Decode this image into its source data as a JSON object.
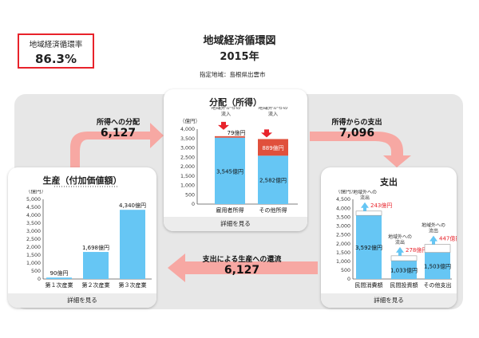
{
  "rate": {
    "label": "地域経済循環率",
    "value": "86.3%"
  },
  "header": {
    "title": "地域経済循環図",
    "year": "2015年",
    "region": "指定地域：島根県出雲市"
  },
  "distribution": {
    "title": "分配（所得）",
    "footer": "詳細を見る",
    "inflow_label_1": "地域外からの",
    "inflow_label_2": "流入",
    "inflow_label_3": "地域外からの",
    "inflow_label_4": "流入",
    "chart_data": {
      "type": "bar",
      "unit": "（億円）",
      "categories": [
        "雇用者所得",
        "その他所得"
      ],
      "ylim": [
        0,
        4000
      ],
      "ticks": [
        "0",
        "500",
        "1,000",
        "1,500",
        "2,000",
        "2,500",
        "3,000",
        "3,500",
        "4,000"
      ],
      "series": [
        {
          "values": [
            3545,
            2582
          ],
          "labels": [
            "3,545億円",
            "2,582億円"
          ],
          "color": "#66c6f4"
        },
        {
          "values": [
            79,
            889
          ],
          "labels": [
            "79億円",
            "889億円"
          ],
          "color": "#e0503c"
        }
      ]
    }
  },
  "production": {
    "title": "生産（付加価値額）",
    "footer": "詳細を見る",
    "chart_data": {
      "type": "bar",
      "unit": "（億円）",
      "categories": [
        "第１次産業",
        "第２次産業",
        "第３次産業"
      ],
      "ylim": [
        0,
        5000
      ],
      "ticks": [
        "0",
        "500",
        "1,000",
        "1,500",
        "2,000",
        "2,500",
        "3,000",
        "3,500",
        "4,000",
        "4,500",
        "5,000"
      ],
      "values": [
        90,
        1698,
        4340
      ],
      "labels": [
        "90億円",
        "1,698億円",
        "4,340億円"
      ],
      "color": "#66c6f4"
    }
  },
  "spending": {
    "title": "支出",
    "footer": "詳細を見る",
    "outflow_labels": [
      {
        "l1": "地域外への",
        "l2": "流出"
      },
      {
        "l1": "地域外への",
        "l2": "流出"
      },
      {
        "l1": "地域外への",
        "l2": "流出"
      }
    ],
    "chart_data": {
      "type": "bar",
      "unit": "（億円）",
      "categories": [
        "民間消費額",
        "民間投資額",
        "その他支出"
      ],
      "ylim": [
        0,
        4500
      ],
      "ticks": [
        "0",
        "500",
        "1,000",
        "1,500",
        "2,000",
        "2,500",
        "3,000",
        "3,500",
        "4,000",
        "4,500"
      ],
      "values": [
        3592,
        1033,
        1503
      ],
      "labels": [
        "3,592億円",
        "1,033億円",
        "1,503億円"
      ],
      "outflow_values": [
        243,
        278,
        447
      ],
      "outflow_labels": [
        "243億円",
        "278億円",
        "447億円"
      ],
      "color": "#66c6f4",
      "outflow_color": "#e8232b"
    }
  },
  "flows": {
    "to_dist": {
      "label": "所得への分配",
      "value": "6,127"
    },
    "from_dist": {
      "label": "所得からの支出",
      "value": "7,096"
    },
    "to_prod": {
      "label": "支出による生産への還流",
      "value": "6,127"
    }
  },
  "colors": {
    "arrow": "#f7a8a3",
    "bar": "#66c6f4",
    "red": "#e8232b"
  }
}
